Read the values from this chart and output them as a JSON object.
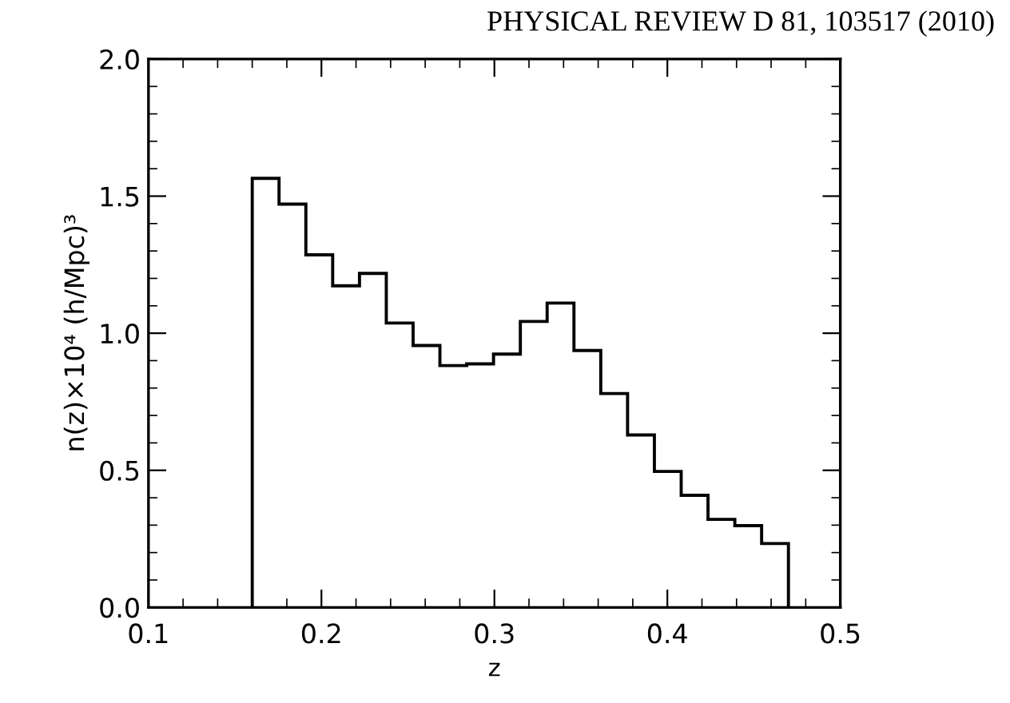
{
  "chart_data": {
    "type": "histogram",
    "xlabel": "z",
    "ylabel": "n(z)×10⁴ (h/Mpc)³",
    "annotations": [
      "PHYSICAL REVIEW D 81, 103517 (2010)"
    ],
    "bins": [
      0.16,
      0.1755,
      0.191,
      0.2065,
      0.222,
      0.2375,
      0.253,
      0.2685,
      0.284,
      0.2995,
      0.315,
      0.3305,
      0.346,
      0.3615,
      0.377,
      0.3925,
      0.408,
      0.4235,
      0.439,
      0.4545,
      0.47
    ],
    "values": [
      1.565,
      1.471,
      1.286,
      1.173,
      1.218,
      1.037,
      0.955,
      0.882,
      0.888,
      0.924,
      1.043,
      1.11,
      0.937,
      0.78,
      0.629,
      0.496,
      0.409,
      0.321,
      0.298,
      0.233
    ],
    "color": "#000000",
    "xlim": [
      0.1,
      0.5
    ],
    "xticks": [
      0.1,
      0.2,
      0.3,
      0.4,
      0.5
    ],
    "ylim": [
      0,
      2.0
    ],
    "yticks": [
      {
        "value": 0,
        "label": "0.0"
      },
      {
        "value": 0.5,
        "label": "0.5"
      },
      {
        "value": 1.0,
        "label": "1.0"
      },
      {
        "value": 1.5,
        "label": "1.5"
      },
      {
        "value": 2.0,
        "label": "2.0"
      }
    ],
    "grid": false
  }
}
